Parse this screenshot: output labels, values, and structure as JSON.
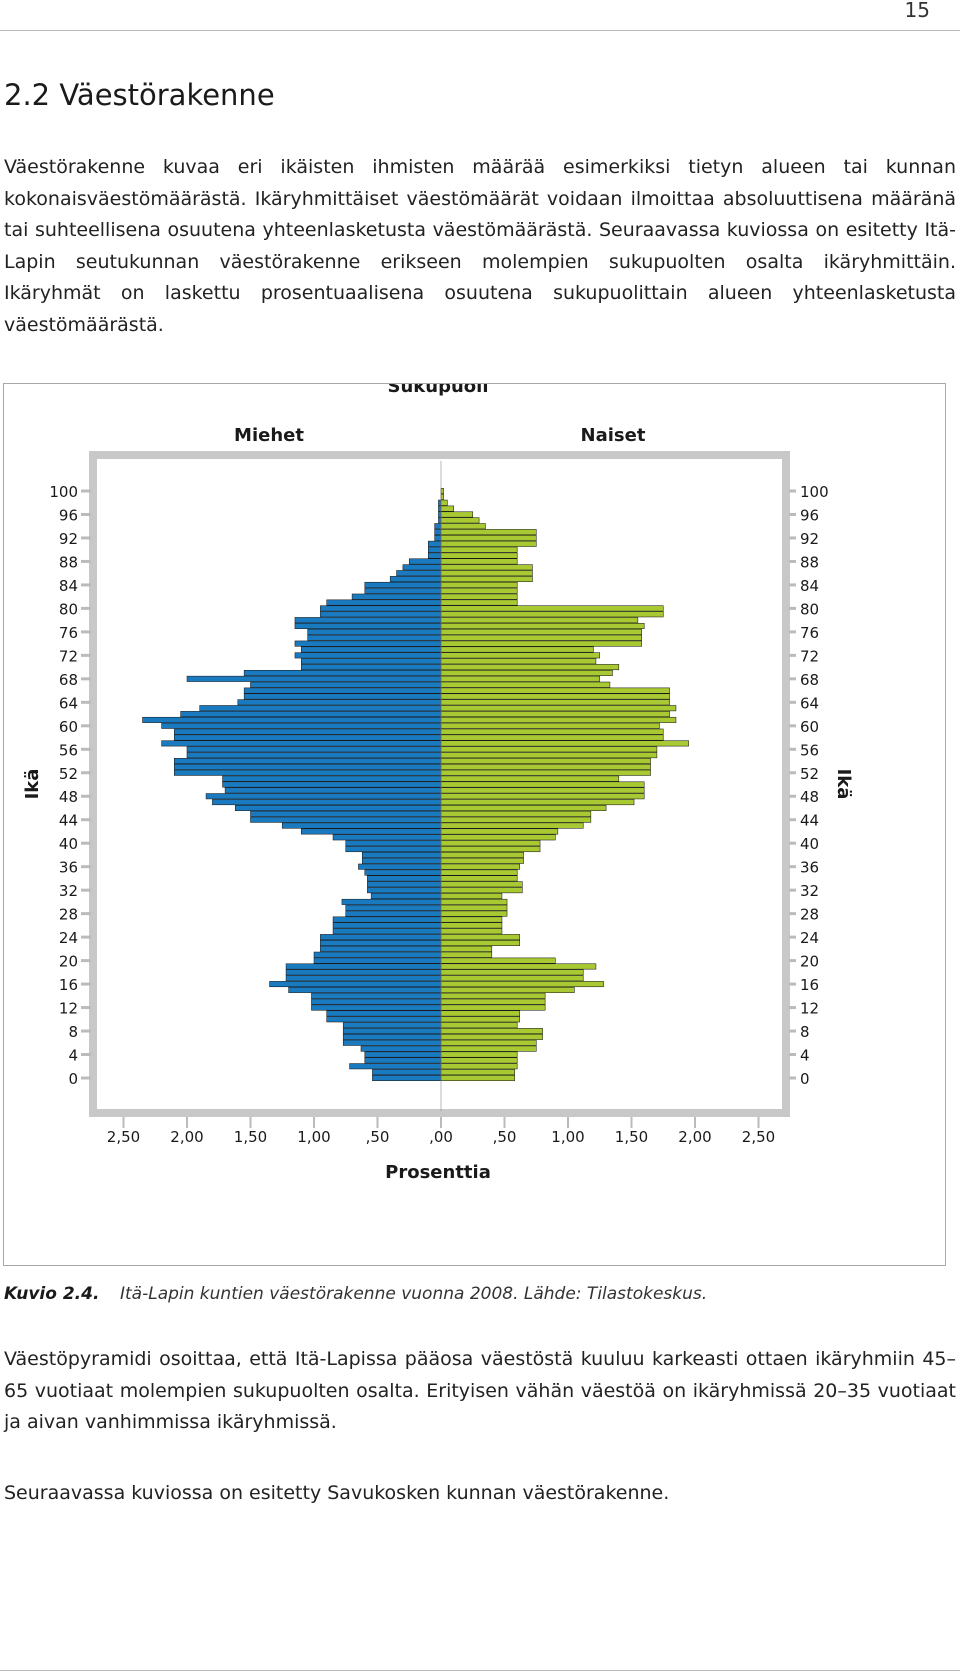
{
  "page": {
    "number": "15",
    "section_heading": "2.2 Väestörakenne",
    "intro_paragraph": "Väestörakenne kuvaa eri ikäisten ihmisten määrää esimerkiksi tietyn alueen tai kunnan kokonaisväestömäärästä. Ikäryhmittäiset väestömäärät voidaan ilmoittaa absoluuttisena määränä tai suhteellisena osuutena yhteenlasketusta väestömäärästä. Seuraavassa kuviossa on esitetty Itä-Lapin seutukunnan väestörakenne erikseen molempien sukupuolten osalta ikäryhmittäin. Ikäryhmät on laskettu prosentuaalisena osuutena sukupuolittain alueen yhteenlasketusta väestömäärästä.",
    "caption_label": "Kuvio 2.4.",
    "caption_text": "Itä-Lapin kuntien väestörakenne vuonna 2008. Lähde: Tilastokeskus.",
    "paragraph_2": "Väestöpyramidi osoittaa, että Itä-Lapissa pääosa väestöstä kuuluu karkeasti ottaen ikäryhmiin 45–65 vuotiaat molempien sukupuolten osalta. Erityisen vähän väestöä on ikäryhmissä 20–35 vuotiaat ja aivan vanhimmissa ikäryhmissä.",
    "paragraph_3": "Seuraavassa kuviossa on esitetty Savukosken kunnan väestörakenne."
  },
  "chart_data": {
    "type": "bar",
    "orientation": "horizontal-population-pyramid",
    "title": "Sukupuoli",
    "panel_labels": [
      "Miehet",
      "Naiset"
    ],
    "xlabel": "Prosenttia",
    "ylabel": "Ikä",
    "x_tick_labels": [
      "2,50",
      "2,00",
      "1,50",
      "1,00",
      ",50",
      ",00",
      ",50",
      "1,00",
      "1,50",
      "2,00",
      "2,50"
    ],
    "x_ticks": [
      -2.5,
      -2.0,
      -1.5,
      -1.0,
      -0.5,
      0.0,
      0.5,
      1.0,
      1.5,
      2.0,
      2.5
    ],
    "xlim": [
      -2.5,
      2.5
    ],
    "y_tick_labels": [
      "100",
      "96",
      "92",
      "88",
      "84",
      "80",
      "76",
      "72",
      "68",
      "64",
      "60",
      "56",
      "52",
      "48",
      "44",
      "40",
      "36",
      "32",
      "28",
      "24",
      "20",
      "16",
      "12",
      "8",
      "4",
      "0"
    ],
    "ages": [
      0,
      1,
      2,
      3,
      4,
      5,
      6,
      7,
      8,
      9,
      10,
      11,
      12,
      13,
      14,
      15,
      16,
      17,
      18,
      19,
      20,
      21,
      22,
      23,
      24,
      25,
      26,
      27,
      28,
      29,
      30,
      31,
      32,
      33,
      34,
      35,
      36,
      37,
      38,
      39,
      40,
      41,
      42,
      43,
      44,
      45,
      46,
      47,
      48,
      49,
      50,
      51,
      52,
      53,
      54,
      55,
      56,
      57,
      58,
      59,
      60,
      61,
      62,
      63,
      64,
      65,
      66,
      67,
      68,
      69,
      70,
      71,
      72,
      73,
      74,
      75,
      76,
      77,
      78,
      79,
      80,
      81,
      82,
      83,
      84,
      85,
      86,
      87,
      88,
      89,
      90,
      91,
      92,
      93,
      94,
      95,
      96,
      97,
      98,
      99,
      100
    ],
    "ylim": [
      0,
      100
    ],
    "series": [
      {
        "name": "Miehet",
        "color": "#1a7ac0",
        "values": [
          0.54,
          0.54,
          0.72,
          0.6,
          0.6,
          0.63,
          0.77,
          0.77,
          0.77,
          0.77,
          0.9,
          0.9,
          1.02,
          1.02,
          1.02,
          1.2,
          1.35,
          1.22,
          1.22,
          1.22,
          1.0,
          1.0,
          0.95,
          0.95,
          0.95,
          0.85,
          0.85,
          0.85,
          0.75,
          0.75,
          0.78,
          0.55,
          0.58,
          0.58,
          0.58,
          0.6,
          0.65,
          0.62,
          0.62,
          0.75,
          0.75,
          0.85,
          1.1,
          1.25,
          1.5,
          1.5,
          1.62,
          1.8,
          1.85,
          1.7,
          1.72,
          1.72,
          2.1,
          2.1,
          2.1,
          2.0,
          2.0,
          2.2,
          2.1,
          2.1,
          2.2,
          2.35,
          2.05,
          1.9,
          1.6,
          1.55,
          1.55,
          1.5,
          2.0,
          1.55,
          1.1,
          1.1,
          1.15,
          1.1,
          1.15,
          1.05,
          1.05,
          1.15,
          1.15,
          0.95,
          0.95,
          0.9,
          0.7,
          0.6,
          0.6,
          0.4,
          0.35,
          0.3,
          0.25,
          0.1,
          0.1,
          0.1,
          0.05,
          0.05,
          0.05,
          0.02,
          0.02,
          0.02,
          0.02,
          0.0,
          0.0
        ]
      },
      {
        "name": "Naiset",
        "color": "#a9c933",
        "values": [
          0.58,
          0.58,
          0.6,
          0.6,
          0.6,
          0.75,
          0.75,
          0.8,
          0.8,
          0.6,
          0.62,
          0.62,
          0.82,
          0.82,
          0.82,
          1.05,
          1.28,
          1.12,
          1.12,
          1.22,
          0.9,
          0.4,
          0.4,
          0.62,
          0.62,
          0.48,
          0.48,
          0.48,
          0.52,
          0.52,
          0.52,
          0.48,
          0.64,
          0.64,
          0.6,
          0.6,
          0.62,
          0.65,
          0.65,
          0.78,
          0.78,
          0.9,
          0.92,
          1.12,
          1.18,
          1.18,
          1.3,
          1.52,
          1.6,
          1.6,
          1.6,
          1.4,
          1.65,
          1.65,
          1.65,
          1.7,
          1.7,
          1.95,
          1.75,
          1.75,
          1.72,
          1.85,
          1.8,
          1.85,
          1.8,
          1.8,
          1.8,
          1.33,
          1.25,
          1.35,
          1.4,
          1.22,
          1.25,
          1.2,
          1.58,
          1.58,
          1.58,
          1.6,
          1.55,
          1.75,
          1.75,
          0.6,
          0.6,
          0.6,
          0.6,
          0.72,
          0.72,
          0.72,
          0.6,
          0.6,
          0.6,
          0.75,
          0.75,
          0.75,
          0.35,
          0.3,
          0.25,
          0.1,
          0.05,
          0.02,
          0.02
        ]
      }
    ],
    "grid": false,
    "background_color": "#ffffff",
    "frame_color": "#c8c8c8"
  }
}
